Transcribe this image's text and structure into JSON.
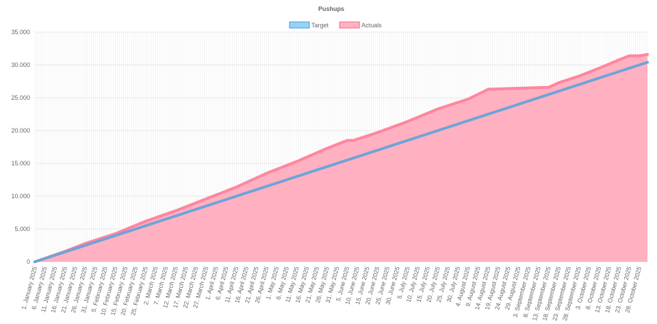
{
  "chart_data": {
    "type": "line",
    "title": "Pushups",
    "legend_position": "top",
    "grid": true,
    "ylim": [
      0,
      35000
    ],
    "y_ticks": [
      "0",
      "5.000",
      "10.000",
      "15.000",
      "20.000",
      "25.000",
      "30.000",
      "35.000"
    ],
    "x_start": "2025-01-01",
    "x_end": "2025-11-01",
    "x_tick_labels": [
      "1. January 2025",
      "6. January 2025",
      "11. January 2025",
      "16. January 2025",
      "21. January 2025",
      "26. January 2025",
      "31. January 2025",
      "5. February 2025",
      "10. February 2025",
      "15. February 2025",
      "20. February 2025",
      "25. February 2025",
      "2. March 2025",
      "7. March 2025",
      "12. March 2025",
      "17. March 2025",
      "22. March 2025",
      "27. March 2025",
      "1. April 2025",
      "6. April 2025",
      "11. April 2025",
      "16. April 2025",
      "21. April 2025",
      "26. April 2025",
      "1. May 2025",
      "6. May 2025",
      "11. May 2025",
      "16. May 2025",
      "21. May 2025",
      "26. May 2025",
      "31. May 2025",
      "5. June 2025",
      "10. June 2025",
      "15. June 2025",
      "20. June 2025",
      "25. June 2025",
      "30. June 2025",
      "5. July 2025",
      "10. July 2025",
      "15. July 2025",
      "20. July 2025",
      "25. July 2025",
      "30. July 2025",
      "4. August 2025",
      "9. August 2025",
      "14. August 2025",
      "19. August 2025",
      "24. August 2025",
      "29. August 2025",
      "3. September 2025",
      "8. September 2025",
      "13. September 2025",
      "18. September 2025",
      "23. September 2025",
      "28. September 2025",
      "3. October 2025",
      "8. October 2025",
      "13. October 2025",
      "18. October 2025",
      "23. October 2025",
      "28. October 2025"
    ],
    "series": [
      {
        "name": "Target",
        "color": "#5b9bd5",
        "legend_fill": "#9ad0f5",
        "legend_stroke": "#36a2eb",
        "points": [
          {
            "x": "2025-01-01",
            "y": 0
          },
          {
            "x": "2025-11-01",
            "y": 30400
          }
        ]
      },
      {
        "name": "Actuals",
        "color": "#ff6384",
        "fill": "#ffb1c1",
        "legend_fill": "#ffb1c1",
        "legend_stroke": "#ff6384",
        "points": [
          {
            "x": "2025-01-01",
            "y": 0
          },
          {
            "x": "2025-01-16",
            "y": 1600
          },
          {
            "x": "2025-01-26",
            "y": 2800
          },
          {
            "x": "2025-02-10",
            "y": 4300
          },
          {
            "x": "2025-02-25",
            "y": 6200
          },
          {
            "x": "2025-03-12",
            "y": 7800
          },
          {
            "x": "2025-03-27",
            "y": 9600
          },
          {
            "x": "2025-04-11",
            "y": 11400
          },
          {
            "x": "2025-04-26",
            "y": 13500
          },
          {
            "x": "2025-05-11",
            "y": 15300
          },
          {
            "x": "2025-05-26",
            "y": 17300
          },
          {
            "x": "2025-06-05",
            "y": 18500
          },
          {
            "x": "2025-06-08",
            "y": 18500
          },
          {
            "x": "2025-06-20",
            "y": 19700
          },
          {
            "x": "2025-07-05",
            "y": 21400
          },
          {
            "x": "2025-07-20",
            "y": 23300
          },
          {
            "x": "2025-08-04",
            "y": 24800
          },
          {
            "x": "2025-08-14",
            "y": 26300
          },
          {
            "x": "2025-08-24",
            "y": 26400
          },
          {
            "x": "2025-09-13",
            "y": 26600
          },
          {
            "x": "2025-09-18",
            "y": 27300
          },
          {
            "x": "2025-09-28",
            "y": 28300
          },
          {
            "x": "2025-10-08",
            "y": 29500
          },
          {
            "x": "2025-10-18",
            "y": 30800
          },
          {
            "x": "2025-10-23",
            "y": 31400
          },
          {
            "x": "2025-10-28",
            "y": 31400
          },
          {
            "x": "2025-11-01",
            "y": 31600
          }
        ]
      }
    ]
  }
}
